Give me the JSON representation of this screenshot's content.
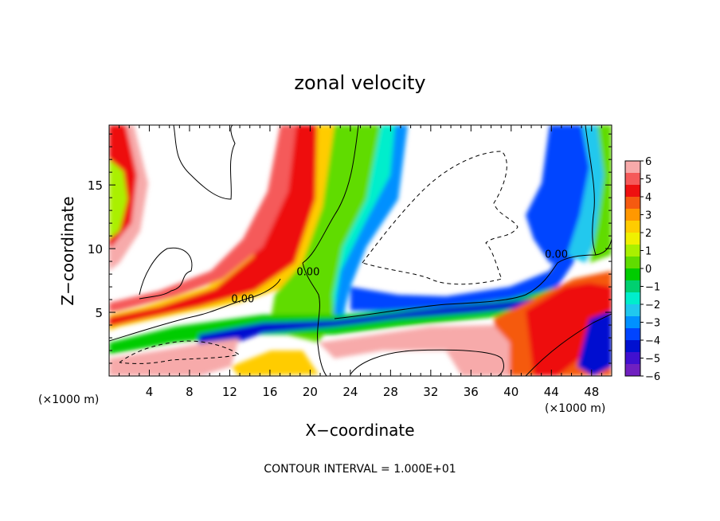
{
  "chart_data": {
    "type": "heatmap",
    "title": "zonal velocity",
    "xlabel": "X−coordinate",
    "ylabel": "Z−coordinate",
    "x_unit_label": "(×1000 m)",
    "x_unit_label_right": "(×1000 m)",
    "footer": "CONTOUR INTERVAL = 1.000E+01",
    "xlim": [
      0,
      50
    ],
    "ylim": [
      0,
      19.7
    ],
    "x_ticks": [
      4,
      8,
      12,
      16,
      20,
      24,
      28,
      32,
      36,
      40,
      44,
      48
    ],
    "x_tick_labels": [
      "4",
      "8",
      "12",
      "16",
      "20",
      "24",
      "28",
      "32",
      "36",
      "40",
      "44",
      "48"
    ],
    "y_ticks": [
      5,
      10,
      15
    ],
    "y_tick_labels": [
      "5",
      "10",
      "15"
    ],
    "contour_labels": [
      {
        "text": "0.00",
        "x": 13.3,
        "y": 5.8
      },
      {
        "text": "0.00",
        "x": 19.8,
        "y": 7.9
      },
      {
        "text": "0.00",
        "x": 44.5,
        "y": 9.3
      }
    ],
    "colorbar": {
      "min": -6,
      "max": 6,
      "tick_labels": [
        "6",
        "5",
        "4",
        "3",
        "2",
        "1",
        "0",
        "−1",
        "−2",
        "−3",
        "−4",
        "−5",
        "−6"
      ],
      "colors": [
        "#f7aaaa",
        "#f55a5a",
        "#ee1010",
        "#f55a10",
        "#ff9800",
        "#ffcc00",
        "#f0f000",
        "#aaf000",
        "#60dc00",
        "#00cc00",
        "#00d070",
        "#00eecc",
        "#20c8ee",
        "#0090ff",
        "#0044ff",
        "#0010d0",
        "#4010d0",
        "#7020c0"
      ]
    }
  }
}
